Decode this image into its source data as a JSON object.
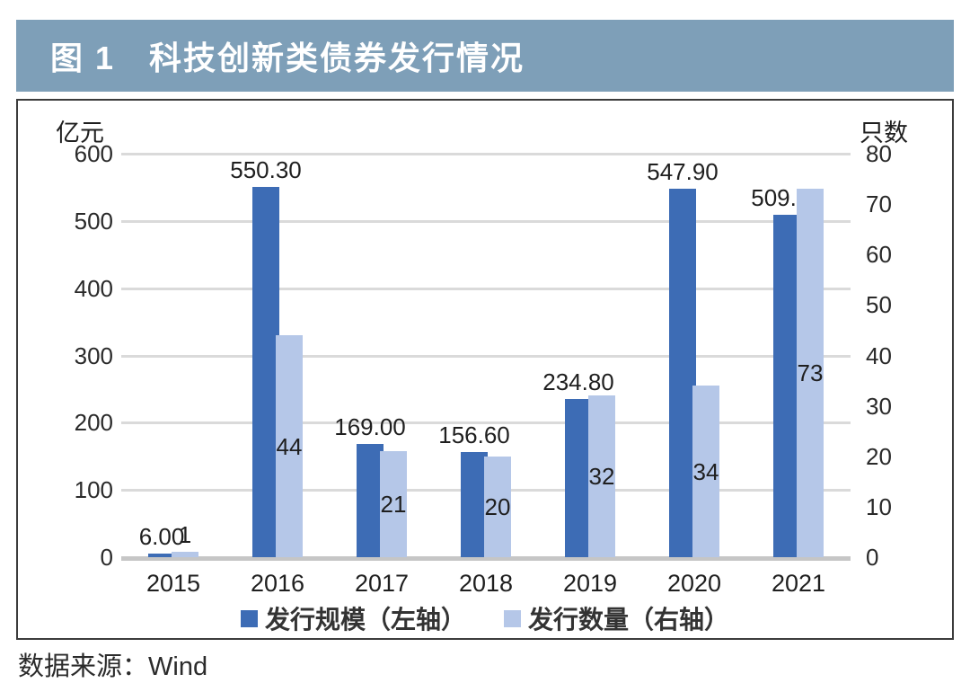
{
  "header": {
    "title": "图 1　科技创新类债券发行情况"
  },
  "source": {
    "label": "数据来源：Wind"
  },
  "colors": {
    "band": "#7e9fb8",
    "scale_bar": "#3d6cb5",
    "count_bar": "#b5c7e8",
    "gridline": "#dadada"
  },
  "chart_data": {
    "type": "bar",
    "title": "图 1　科技创新类债券发行情况",
    "categories": [
      "2015",
      "2016",
      "2017",
      "2018",
      "2019",
      "2020",
      "2021"
    ],
    "series": [
      {
        "name": "发行规模（左轴）",
        "axis": "left",
        "color": "#3d6cb5",
        "values": [
          6.0,
          550.3,
          169.0,
          156.6,
          234.8,
          547.9,
          509.19
        ],
        "labels": [
          "6.00",
          "550.30",
          "169.00",
          "156.60",
          "234.80",
          "547.90",
          "509.19"
        ]
      },
      {
        "name": "发行数量（右轴）",
        "axis": "right",
        "color": "#b5c7e8",
        "values": [
          1,
          44,
          21,
          20,
          32,
          34,
          73
        ],
        "labels": [
          "1",
          "44",
          "21",
          "20",
          "32",
          "34",
          "73"
        ]
      }
    ],
    "left_axis": {
      "title": "亿元",
      "min": 0,
      "max": 600,
      "ticks": [
        600,
        500,
        400,
        300,
        200,
        100,
        0
      ]
    },
    "right_axis": {
      "title": "只数",
      "min": 0,
      "max": 80,
      "ticks": [
        80,
        70,
        60,
        50,
        40,
        30,
        20,
        10,
        0
      ]
    },
    "grid": "horizontal",
    "legend_position": "bottom"
  }
}
